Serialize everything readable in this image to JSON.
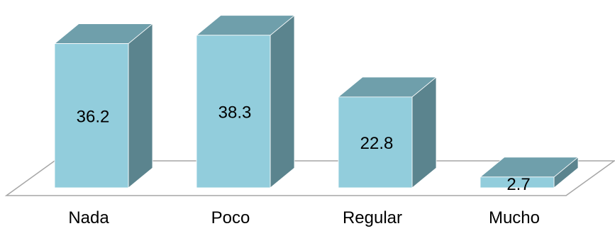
{
  "chart_data": {
    "type": "bar",
    "style": "3d-column",
    "categories": [
      "Nada",
      "Poco",
      "Regular",
      "Mucho"
    ],
    "values": [
      36.2,
      38.3,
      22.8,
      2.7
    ],
    "title": "",
    "xlabel": "",
    "ylabel": "",
    "ylim": [
      0,
      40
    ],
    "grid": false,
    "legend": "none",
    "data_labels": true,
    "colors": {
      "front": "#92cddc",
      "top": "#6f9fab",
      "side": "#5b848e",
      "floor_stroke": "#a6a6a6",
      "edge": "#ffffff"
    }
  }
}
